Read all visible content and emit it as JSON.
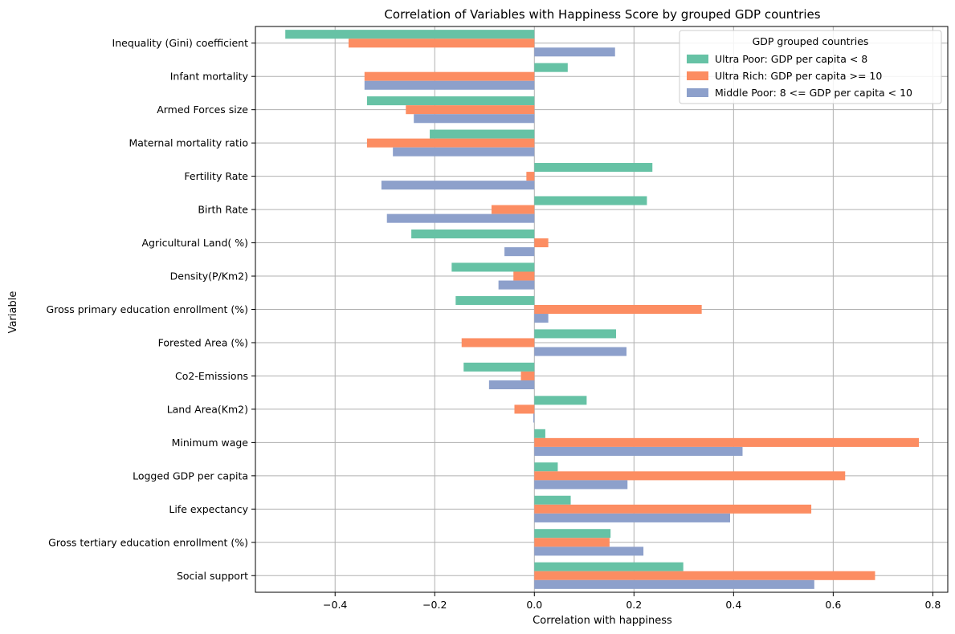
{
  "chart_data": {
    "type": "bar",
    "orientation": "horizontal",
    "title": "Correlation of Variables with Happiness Score by grouped GDP countries",
    "xlabel": "Correlation with happiness",
    "ylabel": "Variable",
    "xlim": [
      -0.56,
      0.83
    ],
    "xticks": [
      -0.4,
      -0.2,
      0.0,
      0.2,
      0.4,
      0.6,
      0.8
    ],
    "xtick_labels": [
      "−0.4",
      "−0.2",
      "0.0",
      "0.2",
      "0.4",
      "0.6",
      "0.8"
    ],
    "grid": true,
    "legend_title": "GDP grouped countries",
    "legend_position": "top-right",
    "categories": [
      "Inequality (Gini) coefficient",
      "Infant mortality",
      "Armed Forces size",
      "Maternal mortality ratio",
      "Fertility Rate",
      "Birth Rate",
      "Agricultural Land( %)",
      "Density(P/Km2)",
      "Gross primary education enrollment (%)",
      "Forested Area (%)",
      "Co2-Emissions",
      "Land Area(Km2)",
      "Minimum wage",
      "Logged GDP per capita",
      "Life expectancy",
      "Gross tertiary education enrollment (%)",
      "Social support"
    ],
    "series": [
      {
        "name": "Ultra Poor: GDP per capita < 8",
        "color": "#66c2a5",
        "values": [
          -0.5,
          0.067,
          -0.336,
          -0.21,
          0.237,
          0.226,
          -0.247,
          -0.166,
          -0.158,
          0.164,
          -0.142,
          0.105,
          0.022,
          0.047,
          0.073,
          0.153,
          0.299
        ]
      },
      {
        "name": "Ultra Rich: GDP per capita >= 10",
        "color": "#fc8d62",
        "values": [
          -0.373,
          -0.341,
          -0.258,
          -0.336,
          -0.016,
          -0.086,
          0.028,
          -0.042,
          0.336,
          -0.146,
          -0.027,
          -0.04,
          0.772,
          0.624,
          0.556,
          0.151,
          0.684
        ]
      },
      {
        "name": "Middle Poor: 8 <= GDP per capita < 10",
        "color": "#8da0cb",
        "values": [
          0.162,
          -0.341,
          -0.242,
          -0.284,
          -0.307,
          -0.296,
          -0.06,
          -0.072,
          0.028,
          0.185,
          -0.091,
          -0.002,
          0.418,
          0.187,
          0.393,
          0.219,
          0.562
        ]
      }
    ]
  }
}
